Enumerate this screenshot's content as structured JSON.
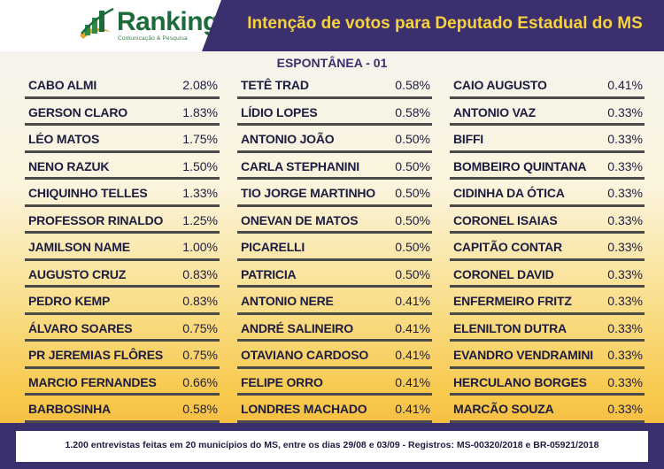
{
  "header": {
    "title": "Intenção de votos para Deputado Estadual do MS",
    "logo_text": "Ranking",
    "logo_subtitle": "Comunicação & Pesquisa",
    "brand_color": "#3b2f6e",
    "title_color": "#f7d23e"
  },
  "subtitle": "ESPONTÂNEA - 01",
  "columns": [
    [
      {
        "name": "CABO ALMI",
        "pct": "2.08%"
      },
      {
        "name": "GERSON CLARO",
        "pct": "1.83%"
      },
      {
        "name": "LÉO MATOS",
        "pct": "1.75%"
      },
      {
        "name": "NENO RAZUK",
        "pct": "1.50%"
      },
      {
        "name": "CHIQUINHO TELLES",
        "pct": "1.33%"
      },
      {
        "name": "PROFESSOR RINALDO",
        "pct": "1.25%"
      },
      {
        "name": "JAMILSON NAME",
        "pct": "1.00%"
      },
      {
        "name": "AUGUSTO CRUZ",
        "pct": "0.83%"
      },
      {
        "name": "PEDRO KEMP",
        "pct": "0.83%"
      },
      {
        "name": "ÁLVARO SOARES",
        "pct": "0.75%"
      },
      {
        "name": "PR JEREMIAS FLÔRES",
        "pct": "0.75%"
      },
      {
        "name": "MARCIO FERNANDES",
        "pct": "0.66%"
      },
      {
        "name": "BARBOSINHA",
        "pct": "0.58%"
      }
    ],
    [
      {
        "name": "TETÊ TRAD",
        "pct": "0.58%"
      },
      {
        "name": "LÍDIO LOPES",
        "pct": "0.58%"
      },
      {
        "name": "ANTONIO JOÃO",
        "pct": "0.50%"
      },
      {
        "name": "CARLA STEPHANINI",
        "pct": "0.50%"
      },
      {
        "name": "TIO JORGE MARTINHO",
        "pct": "0.50%"
      },
      {
        "name": "ONEVAN DE MATOS",
        "pct": "0.50%"
      },
      {
        "name": "PICARELLI",
        "pct": "0.50%"
      },
      {
        "name": "PATRICIA",
        "pct": "0.50%"
      },
      {
        "name": "ANTONIO NERE",
        "pct": "0.41%"
      },
      {
        "name": "ANDRÉ SALINEIRO",
        "pct": "0.41%"
      },
      {
        "name": "OTAVIANO CARDOSO",
        "pct": "0.41%"
      },
      {
        "name": "FELIPE ORRO",
        "pct": "0.41%"
      },
      {
        "name": "LONDRES MACHADO",
        "pct": "0.41%"
      }
    ],
    [
      {
        "name": "CAIO AUGUSTO",
        "pct": "0.41%"
      },
      {
        "name": "ANTONIO VAZ",
        "pct": "0.33%"
      },
      {
        "name": "BIFFI",
        "pct": "0.33%"
      },
      {
        "name": "BOMBEIRO QUINTANA",
        "pct": "0.33%"
      },
      {
        "name": "CIDINHA DA ÓTICA",
        "pct": "0.33%"
      },
      {
        "name": "CORONEL ISAIAS",
        "pct": "0.33%"
      },
      {
        "name": "CAPITÃO CONTAR",
        "pct": "0.33%"
      },
      {
        "name": "CORONEL DAVID",
        "pct": "0.33%"
      },
      {
        "name": "ENFERMEIRO FRITZ",
        "pct": "0.33%"
      },
      {
        "name": "ELENILTON DUTRA",
        "pct": "0.33%"
      },
      {
        "name": "EVANDRO VENDRAMINI",
        "pct": "0.33%"
      },
      {
        "name": "HERCULANO BORGES",
        "pct": "0.33%"
      },
      {
        "name": "MARCÃO SOUZA",
        "pct": "0.33%"
      }
    ]
  ],
  "footer": "1.200 entrevistas feitas em 20 municípios do MS, entre os dias 29/08 e 03/09 - Registros: MS-00320/2018 e BR-05921/2018"
}
